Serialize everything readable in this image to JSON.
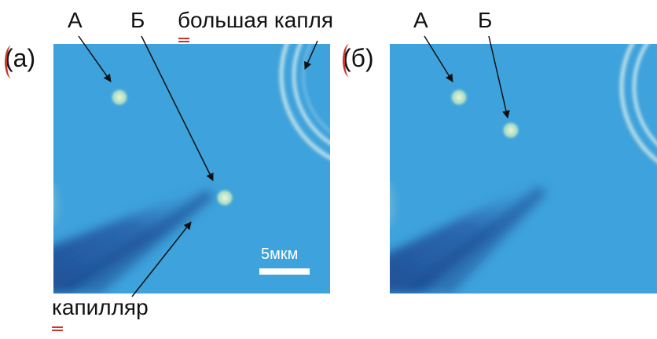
{
  "labels": {
    "panel_a": "(а)",
    "panel_b": "(б)",
    "particle_a": "А",
    "particle_b": "Б",
    "big_drop": "большая капля",
    "capillary": "капилляр",
    "scale": "5мкм"
  },
  "colors": {
    "background_fluid": "#3ea2dc",
    "highlight_spot": "#d9efc9",
    "capillary_shadow": "#1d5a9c",
    "annotation_red": "#c8372a"
  }
}
